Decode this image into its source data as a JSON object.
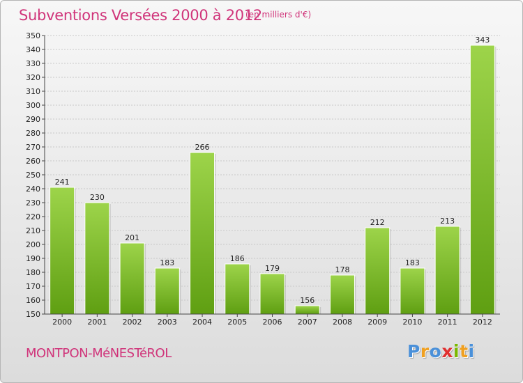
{
  "header": {
    "title": "Subventions Versées 2000 à 2012",
    "subtitle": "(en milliers d'€)"
  },
  "footer": {
    "commune": "MONTPON-MéNESTéROL",
    "logo_letters": [
      {
        "char": "P",
        "color": "#4a90d9"
      },
      {
        "char": "r",
        "color": "#f0a020"
      },
      {
        "char": "o",
        "color": "#4a90d9"
      },
      {
        "char": "x",
        "color": "#e03030"
      },
      {
        "char": "i",
        "color": "#7ab800"
      },
      {
        "char": "t",
        "color": "#f0a020"
      },
      {
        "char": "i",
        "color": "#4a90d9"
      }
    ]
  },
  "colors": {
    "accent": "#d0347a",
    "bar_top": "#9dd44a",
    "bar_bottom": "#5f9f12",
    "grid": "#c8c8c8"
  },
  "chart_data": {
    "type": "bar",
    "title": "Subventions Versées 2000 à 2012",
    "subtitle": "(en milliers d'€)",
    "xlabel": "",
    "ylabel": "",
    "categories": [
      "2000",
      "2001",
      "2002",
      "2003",
      "2004",
      "2005",
      "2006",
      "2007",
      "2008",
      "2009",
      "2010",
      "2011",
      "2012"
    ],
    "values": [
      241,
      230,
      201,
      183,
      266,
      186,
      179,
      156,
      178,
      212,
      183,
      213,
      343
    ],
    "ylim": [
      150,
      350
    ],
    "ytick_step": 10,
    "grid": true,
    "legend": "none"
  }
}
